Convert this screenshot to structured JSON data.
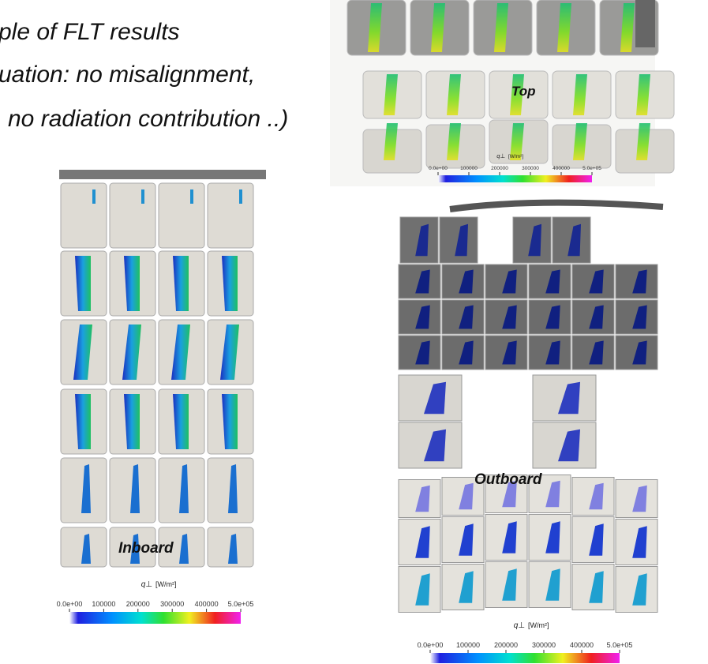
{
  "title_lines": [
    "ple of FLT results",
    "uation: no misalignment,",
    "no radiation contribution ..)"
  ],
  "panels": [
    {
      "label": "Top",
      "colorbar": {
        "quantity": "q⊥",
        "unit": "[W/m²]",
        "ticks": [
          "0.0e+00",
          "100000",
          "200000",
          "300000",
          "400000",
          "5.0e+05"
        ]
      }
    },
    {
      "label": "Inboard",
      "colorbar": {
        "quantity": "q⊥",
        "unit": "[W/m²]",
        "ticks": [
          "0.0e+00",
          "100000",
          "200000",
          "300000",
          "400000",
          "5.0e+05"
        ]
      }
    },
    {
      "label": "Outboard",
      "colorbar": {
        "quantity": "q⊥",
        "unit": "[W/m²]",
        "ticks": [
          "0.0e+00",
          "100000",
          "200000",
          "300000",
          "400000",
          "5.0e+05"
        ]
      }
    }
  ]
}
